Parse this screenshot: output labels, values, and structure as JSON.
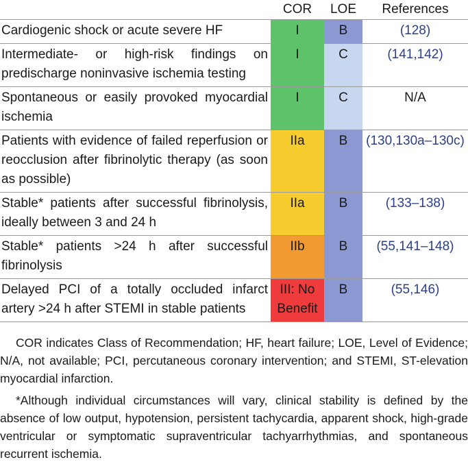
{
  "table": {
    "headers": {
      "recommendation": "",
      "cor": "COR",
      "loe": "LOE",
      "references": "References"
    },
    "rows": [
      {
        "text": "Cardiogenic shock or acute severe HF",
        "cor": "I",
        "loe": "B",
        "references": "(128)"
      },
      {
        "text": "Intermediate- or high-risk findings on predischarge noninvasive ischemia testing",
        "cor": "I",
        "loe": "C",
        "references": "(141,142)"
      },
      {
        "text": "Spontaneous or easily provoked myocardial ischemia",
        "cor": "I",
        "loe": "C",
        "references": "N/A"
      },
      {
        "text": "Patients with evidence of failed reperfusion or reocclusion after fibrinolytic therapy (as soon as possible)",
        "cor": "IIa",
        "loe": "B",
        "references": "(130,130a–130c)"
      },
      {
        "text": "Stable* patients after successful fibrinolysis, ideally between 3 and 24 h",
        "cor": "IIa",
        "loe": "B",
        "references": "(133–138)"
      },
      {
        "text": "Stable* patients >24 h after successful fibrinolysis",
        "cor": "IIb",
        "loe": "B",
        "references": "(55,141–148)"
      },
      {
        "text": "Delayed PCI of a totally occluded infarct artery >24 h after STEMI in stable patients",
        "cor": "III: No Benefit",
        "loe": "B",
        "references": "(55,146)"
      }
    ]
  },
  "colors": {
    "cor_I": "#5dc26a",
    "cor_IIa": "#f7cc2e",
    "cor_IIb": "#f39b33",
    "cor_III": "#ef3b3b",
    "loe_B": "#8b98d2",
    "loe_C": "#c7d7ef",
    "reference_link": "#2b3f8a"
  },
  "footnotes": {
    "abbreviations": "COR indicates Class of Recommendation; HF, heart failure; LOE, Level of Evidence; N/A, not available; PCI, percutaneous coronary intervention; and STEMI, ST-elevation myocardial infarction.",
    "stability": "*Although individual circumstances will vary, clinical stability is defined by the absence of low output, hypotension, persistent tachycardia, apparent shock, high-grade ventricular or symptomatic supraventricular tachyarrhythmias, and spontaneous recurrent ischemia."
  }
}
